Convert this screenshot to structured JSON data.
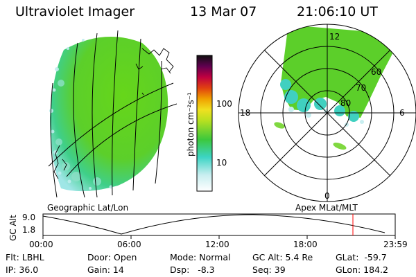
{
  "header": {
    "instrument": "Ultraviolet Imager",
    "date": "13 Mar 07",
    "time": "21:06:10 UT"
  },
  "left_panel": {
    "label": "Geographic Lat/Lon"
  },
  "right_panel": {
    "label": "Apex MLat/MLT",
    "mlt_labels": {
      "top": "12",
      "left": "18",
      "right": "6",
      "bottom": "0"
    },
    "lat_labels": [
      "60",
      "70",
      "80"
    ]
  },
  "colorbar": {
    "unit_label": "photon cm⁻²s⁻¹",
    "ticks": [
      "100",
      "10"
    ]
  },
  "timeline": {
    "ylabel": "GC Alt",
    "ytick_top": "9.0",
    "ytick_bottom": "1.8",
    "xticks": [
      "00:00",
      "06:00",
      "12:00",
      "18:00",
      "23:59"
    ],
    "marker_color": "#ff0000"
  },
  "info": {
    "filter": "Flt: LBHL",
    "ip": "IP: 36.0",
    "door": "Door: Open",
    "gain": "Gain: 14",
    "mode": "Mode: Normal",
    "dsp": "Dsp:   -8.3",
    "gc_alt": "GC Alt: 5.4 Re",
    "seq": "Seq: 39",
    "glat": "GLat:  -59.7",
    "glon": "GLon: 184.2"
  }
}
